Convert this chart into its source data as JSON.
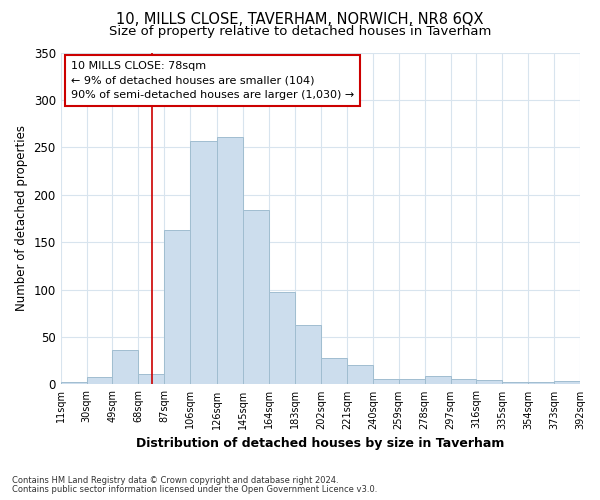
{
  "title1": "10, MILLS CLOSE, TAVERHAM, NORWICH, NR8 6QX",
  "title2": "Size of property relative to detached houses in Taverham",
  "xlabel": "Distribution of detached houses by size in Taverham",
  "ylabel": "Number of detached properties",
  "footnote1": "Contains HM Land Registry data © Crown copyright and database right 2024.",
  "footnote2": "Contains public sector information licensed under the Open Government Licence v3.0.",
  "annotation_title": "10 MILLS CLOSE: 78sqm",
  "annotation_line1": "← 9% of detached houses are smaller (104)",
  "annotation_line2": "90% of semi-detached houses are larger (1,030) →",
  "bar_color": "#ccdded",
  "bar_edge_color": "#a0bdd0",
  "vline_color": "#cc0000",
  "vline_x": 78,
  "bin_edges": [
    11,
    30,
    49,
    68,
    87,
    106,
    126,
    145,
    164,
    183,
    202,
    221,
    240,
    259,
    278,
    297,
    316,
    335,
    354,
    373,
    392
  ],
  "bin_labels": [
    "11sqm",
    "30sqm",
    "49sqm",
    "68sqm",
    "87sqm",
    "106sqm",
    "126sqm",
    "145sqm",
    "164sqm",
    "183sqm",
    "202sqm",
    "221sqm",
    "240sqm",
    "259sqm",
    "278sqm",
    "297sqm",
    "316sqm",
    "335sqm",
    "354sqm",
    "373sqm",
    "392sqm"
  ],
  "bar_heights": [
    3,
    8,
    36,
    11,
    163,
    257,
    261,
    184,
    97,
    63,
    28,
    20,
    6,
    6,
    9,
    6,
    5,
    3,
    3,
    4
  ],
  "ylim": [
    0,
    350
  ],
  "yticks": [
    0,
    50,
    100,
    150,
    200,
    250,
    300,
    350
  ],
  "background_color": "#ffffff",
  "plot_background": "#ffffff",
  "grid_color": "#d8e4ee",
  "title1_fontsize": 10.5,
  "title2_fontsize": 9.5,
  "annotation_box_color": "#ffffff",
  "annotation_box_edge": "#cc0000"
}
